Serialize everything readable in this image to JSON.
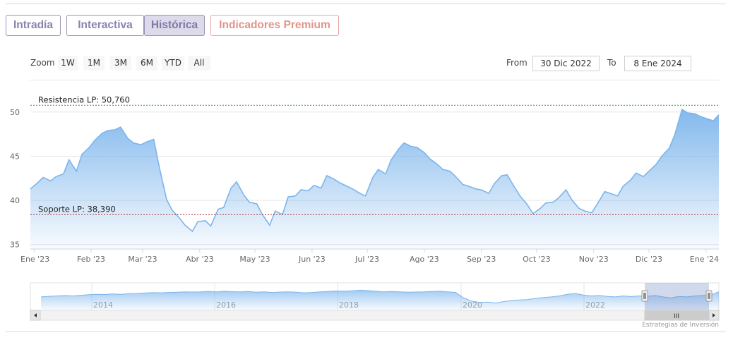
{
  "tabs": [
    {
      "label": "Intradía",
      "state": "normal"
    },
    {
      "label": "Interactiva",
      "state": "normal"
    },
    {
      "label": "Histórica",
      "state": "active"
    },
    {
      "label": "Indicadores Premium",
      "state": "premium"
    }
  ],
  "zoom": {
    "label": "Zoom",
    "buttons": [
      "1W",
      "1M",
      "3M",
      "6M",
      "YTD",
      "All"
    ]
  },
  "range": {
    "from_label": "From",
    "from_value": "30 Dic 2022",
    "to_label": "To",
    "to_value": "8 Ene 2024"
  },
  "chart_data": {
    "type": "area",
    "title": "",
    "xlabel": "",
    "ylabel": "",
    "x_tick_labels": [
      "Ene '23",
      "Feb '23",
      "Mar '23",
      "Abr '23",
      "May '23",
      "Jun '23",
      "Jul '23",
      "Ago '23",
      "Sep '23",
      "Oct '23",
      "Nov '23",
      "Dic '23",
      "Ene '24"
    ],
    "y_tick_labels": [
      "35",
      "40",
      "45",
      "50"
    ],
    "yrange": [
      34.5,
      51.5
    ],
    "grid": true,
    "series": [
      {
        "x": [
          "2022-12-30",
          "2023-01-03",
          "2023-01-06",
          "2023-01-10",
          "2023-01-13",
          "2023-01-17",
          "2023-01-20",
          "2023-01-24",
          "2023-01-27",
          "2023-01-31",
          "2023-02-03",
          "2023-02-07",
          "2023-02-10",
          "2023-02-14",
          "2023-02-17",
          "2023-02-21",
          "2023-02-24",
          "2023-02-28",
          "2023-03-03",
          "2023-03-07",
          "2023-03-10",
          "2023-03-14",
          "2023-03-17",
          "2023-03-21",
          "2023-03-24",
          "2023-03-28",
          "2023-03-31",
          "2023-04-04",
          "2023-04-07",
          "2023-04-11",
          "2023-04-14",
          "2023-04-18",
          "2023-04-21",
          "2023-04-25",
          "2023-04-28",
          "2023-05-02",
          "2023-05-05",
          "2023-05-09",
          "2023-05-12",
          "2023-05-16",
          "2023-05-19",
          "2023-05-23",
          "2023-05-26",
          "2023-05-30",
          "2023-06-02",
          "2023-06-06",
          "2023-06-09",
          "2023-06-13",
          "2023-06-16",
          "2023-06-20",
          "2023-06-23",
          "2023-06-27",
          "2023-06-30",
          "2023-07-04",
          "2023-07-07",
          "2023-07-11",
          "2023-07-14",
          "2023-07-18",
          "2023-07-21",
          "2023-07-25",
          "2023-07-28",
          "2023-08-01",
          "2023-08-04",
          "2023-08-08",
          "2023-08-11",
          "2023-08-15",
          "2023-08-18",
          "2023-08-22",
          "2023-08-25",
          "2023-08-29",
          "2023-09-01",
          "2023-09-05",
          "2023-09-08",
          "2023-09-12",
          "2023-09-15",
          "2023-09-19",
          "2023-09-22",
          "2023-09-26",
          "2023-09-29",
          "2023-10-03",
          "2023-10-06",
          "2023-10-10",
          "2023-10-13",
          "2023-10-17",
          "2023-10-20",
          "2023-10-24",
          "2023-10-27",
          "2023-10-31",
          "2023-11-03",
          "2023-11-07",
          "2023-11-10",
          "2023-11-14",
          "2023-11-17",
          "2023-11-21",
          "2023-11-24",
          "2023-11-28",
          "2023-12-01",
          "2023-12-05",
          "2023-12-08",
          "2023-12-12",
          "2023-12-15",
          "2023-12-19",
          "2023-12-22",
          "2023-12-26",
          "2023-12-29",
          "2024-01-02",
          "2024-01-05",
          "2024-01-08"
        ],
        "y": [
          41.3,
          42.0,
          42.6,
          42.2,
          42.7,
          43.0,
          44.6,
          43.3,
          45.2,
          46.0,
          46.8,
          47.6,
          47.9,
          48.0,
          48.3,
          47.0,
          46.5,
          46.3,
          46.6,
          46.9,
          43.8,
          40.1,
          38.9,
          38.0,
          37.2,
          36.5,
          37.6,
          37.7,
          37.1,
          39.0,
          39.2,
          41.4,
          42.1,
          40.6,
          39.8,
          39.6,
          38.4,
          37.2,
          38.8,
          38.4,
          40.4,
          40.5,
          41.2,
          41.1,
          41.7,
          41.4,
          42.8,
          42.4,
          42.0,
          41.6,
          41.3,
          40.8,
          40.5,
          42.6,
          43.5,
          43.0,
          44.6,
          45.8,
          46.5,
          46.1,
          46.0,
          45.4,
          44.7,
          44.1,
          43.5,
          43.3,
          42.7,
          41.8,
          41.6,
          41.3,
          41.2,
          40.8,
          41.9,
          42.8,
          42.9,
          41.5,
          40.5,
          39.5,
          38.5,
          39.1,
          39.7,
          39.8,
          40.3,
          41.2,
          40.1,
          39.1,
          38.8,
          38.6,
          39.6,
          41.0,
          40.8,
          40.5,
          41.6,
          42.3,
          43.1,
          42.7,
          43.3,
          44.1,
          45.0,
          45.9,
          47.4,
          50.3,
          49.9,
          49.8,
          49.5,
          49.2,
          49.0,
          49.7
        ]
      }
    ],
    "reference_lines": [
      {
        "label": "Resistencia LP: 50,760",
        "value": 50.76,
        "color": "#3a9a3a"
      },
      {
        "label": "Soporte LP: 38,390",
        "value": 38.39,
        "color": "#a83232"
      }
    ],
    "area_color": "#7cb5ec",
    "navigator": {
      "tick_labels": [
        "2014",
        "2016",
        "2018",
        "2020",
        "2022"
      ],
      "scrollbar_grip": "III"
    }
  },
  "credit": "Estrategias de Inversión"
}
